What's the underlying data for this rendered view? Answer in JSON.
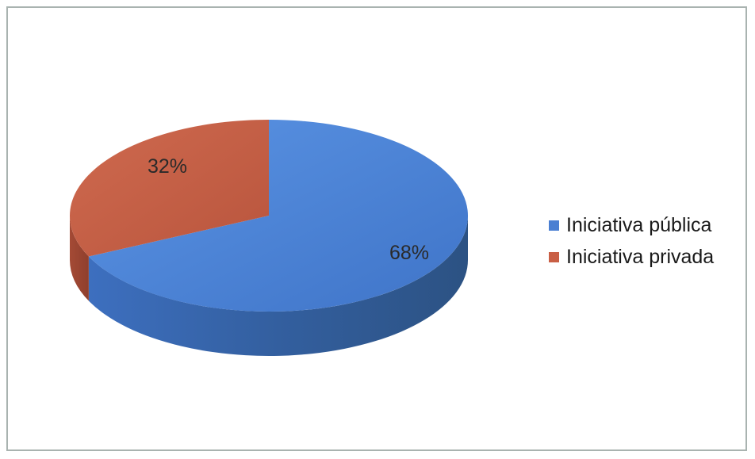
{
  "chart_data": {
    "type": "pie",
    "title": "",
    "slices": [
      {
        "label": "Iniciativa pública",
        "value": 68,
        "display": "68%",
        "color": "#4a7fd2"
      },
      {
        "label": "Iniciativa privada",
        "value": 32,
        "display": "32%",
        "color": "#c95f45"
      }
    ],
    "legend_position": "right",
    "style": "3d"
  }
}
